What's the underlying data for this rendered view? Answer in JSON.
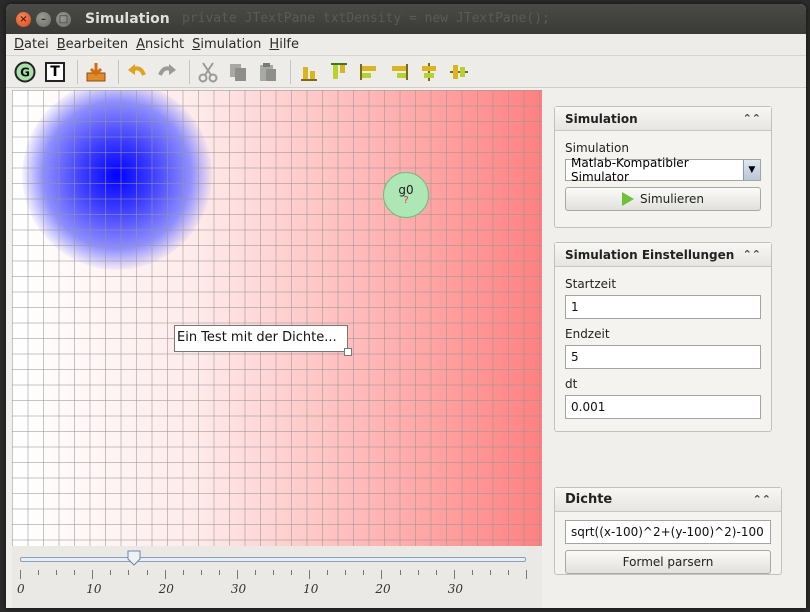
{
  "window": {
    "title": "Simulation",
    "background_code": "private JTextPane txtDensity = new JTextPane();"
  },
  "menu": [
    {
      "label": "Datei",
      "mnemonic_index": 0
    },
    {
      "label": "Bearbeiten",
      "mnemonic_index": 0
    },
    {
      "label": "Ansicht",
      "mnemonic_index": 0
    },
    {
      "label": "Simulation",
      "mnemonic_index": 0
    },
    {
      "label": "Hilfe",
      "mnemonic_index": 0
    }
  ],
  "toolbar": {
    "g_label": "G",
    "t_label": "T",
    "icons": [
      "save-icon",
      "undo-icon",
      "redo-icon",
      "cut-icon",
      "copy-icon",
      "paste-icon",
      "align-bottom-icon",
      "align-top-icon",
      "align-left-icon",
      "align-right-icon",
      "center-vertical-icon",
      "center-horizontal-icon"
    ]
  },
  "canvas": {
    "node_label": "g0",
    "node_status": "?",
    "note_text": "Ein Test mit der Dichte..."
  },
  "slider": {
    "value_fraction": 0.225,
    "tick_labels": [
      "0",
      "10",
      "20",
      "30",
      "10",
      "20",
      "30"
    ]
  },
  "simulation_box": {
    "header": "Simulation",
    "label": "Simulation",
    "selected": "Matlab-Kompatibler Simulator",
    "button": "Simulieren"
  },
  "settings_box": {
    "header": "Simulation Einstellungen",
    "start_label": "Startzeit",
    "start_value": "1",
    "end_label": "Endzeit",
    "end_value": "5",
    "dt_label": "dt",
    "dt_value": "0.001"
  },
  "density_box": {
    "header": "Dichte",
    "formula": "sqrt((x-100)^2+(y-100)^2)-100",
    "button": "Formel parsern"
  }
}
